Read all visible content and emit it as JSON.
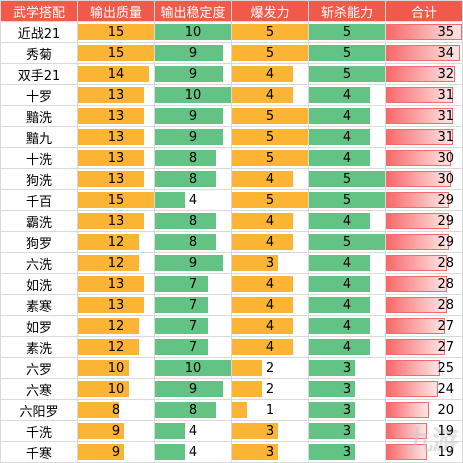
{
  "headers": [
    "武学搭配",
    "输出质量",
    "输出稳定度",
    "爆发力",
    "斩杀能力",
    "合计"
  ],
  "max": {
    "quality": 15,
    "stability": 10,
    "burst": 5,
    "kill": 5,
    "total": 35
  },
  "colors": {
    "header": "#f05a4b",
    "quality": "#fbb433",
    "stability": "#63c384",
    "burst": "#fbb433",
    "kill": "#63c384",
    "total": "#f8696b"
  },
  "rows": [
    {
      "name": "近战21",
      "quality": "15",
      "stability": "10",
      "burst": "5",
      "kill": "5",
      "total": "35"
    },
    {
      "name": "秀菊",
      "quality": "15",
      "stability": "9",
      "burst": "5",
      "kill": "5",
      "total": "34"
    },
    {
      "name": "双手21",
      "quality": "14",
      "stability": "9",
      "burst": "4",
      "kill": "5",
      "total": "32"
    },
    {
      "name": "十罗",
      "quality": "13",
      "stability": "10",
      "burst": "4",
      "kill": "4",
      "total": "31"
    },
    {
      "name": "黯洗",
      "quality": "13",
      "stability": "9",
      "burst": "5",
      "kill": "4",
      "total": "31"
    },
    {
      "name": "黯九",
      "quality": "13",
      "stability": "9",
      "burst": "5",
      "kill": "4",
      "total": "31"
    },
    {
      "name": "十洗",
      "quality": "13",
      "stability": "8",
      "burst": "5",
      "kill": "4",
      "total": "30"
    },
    {
      "name": "狗洗",
      "quality": "13",
      "stability": "8",
      "burst": "4",
      "kill": "5",
      "total": "30"
    },
    {
      "name": "千百",
      "quality": "15",
      "stability": "4",
      "burst": "5",
      "kill": "5",
      "total": "29"
    },
    {
      "name": "霸洗",
      "quality": "13",
      "stability": "8",
      "burst": "4",
      "kill": "4",
      "total": "29"
    },
    {
      "name": "狗罗",
      "quality": "12",
      "stability": "8",
      "burst": "4",
      "kill": "5",
      "total": "29"
    },
    {
      "name": "六洗",
      "quality": "12",
      "stability": "9",
      "burst": "3",
      "kill": "4",
      "total": "28"
    },
    {
      "name": "如洗",
      "quality": "13",
      "stability": "7",
      "burst": "4",
      "kill": "4",
      "total": "28"
    },
    {
      "name": "素寒",
      "quality": "13",
      "stability": "7",
      "burst": "4",
      "kill": "4",
      "total": "28"
    },
    {
      "name": "如罗",
      "quality": "12",
      "stability": "7",
      "burst": "4",
      "kill": "4",
      "total": "27"
    },
    {
      "name": "素洗",
      "quality": "12",
      "stability": "7",
      "burst": "4",
      "kill": "4",
      "total": "27"
    },
    {
      "name": "六罗",
      "quality": "10",
      "stability": "10",
      "burst": "2",
      "kill": "3",
      "total": "25"
    },
    {
      "name": "六寒",
      "quality": "10",
      "stability": "9",
      "burst": "2",
      "kill": "3",
      "total": "24"
    },
    {
      "name": "六阳罗",
      "quality": "8",
      "stability": "8",
      "burst": "1",
      "kill": "3",
      "total": "20"
    },
    {
      "name": "千洗",
      "quality": "9",
      "stability": "4",
      "burst": "3",
      "kill": "3",
      "total": "19"
    },
    {
      "name": "千寒",
      "quality": "9",
      "stability": "4",
      "burst": "3",
      "kill": "3",
      "total": "19"
    }
  ],
  "watermark": "九游"
}
